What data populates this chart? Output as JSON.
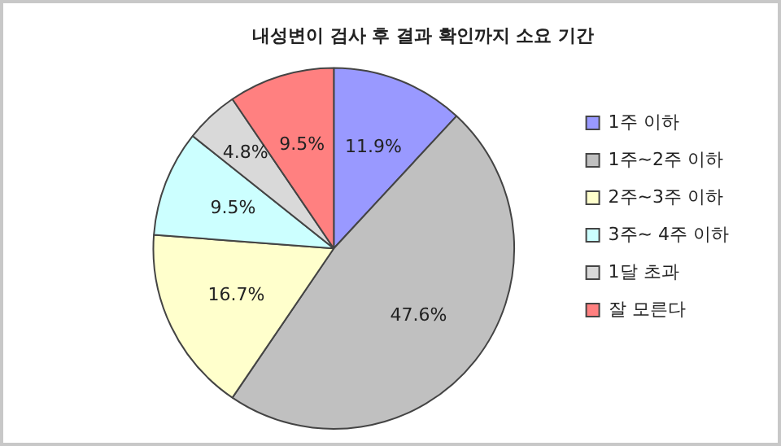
{
  "chart_data": {
    "type": "pie",
    "title": "내성변이 검사 후 결과 확인까지 소요 기간",
    "categories": [
      "1주 이하",
      "1주~2주 이하",
      "2주~3주 이하",
      "3주~ 4주 이하",
      "1달 초과",
      "잘 모른다"
    ],
    "values": [
      11.9,
      47.6,
      16.7,
      9.5,
      4.8,
      9.5
    ],
    "colors": [
      "#9999ff",
      "#c0c0c0",
      "#ffffcc",
      "#ccffff",
      "#d9d9d9",
      "#ff8080"
    ],
    "value_labels": [
      "11.9%",
      "47.6%",
      "16.7%",
      "9.5%",
      "4.8%",
      "9.5%"
    ],
    "legend": "right"
  }
}
